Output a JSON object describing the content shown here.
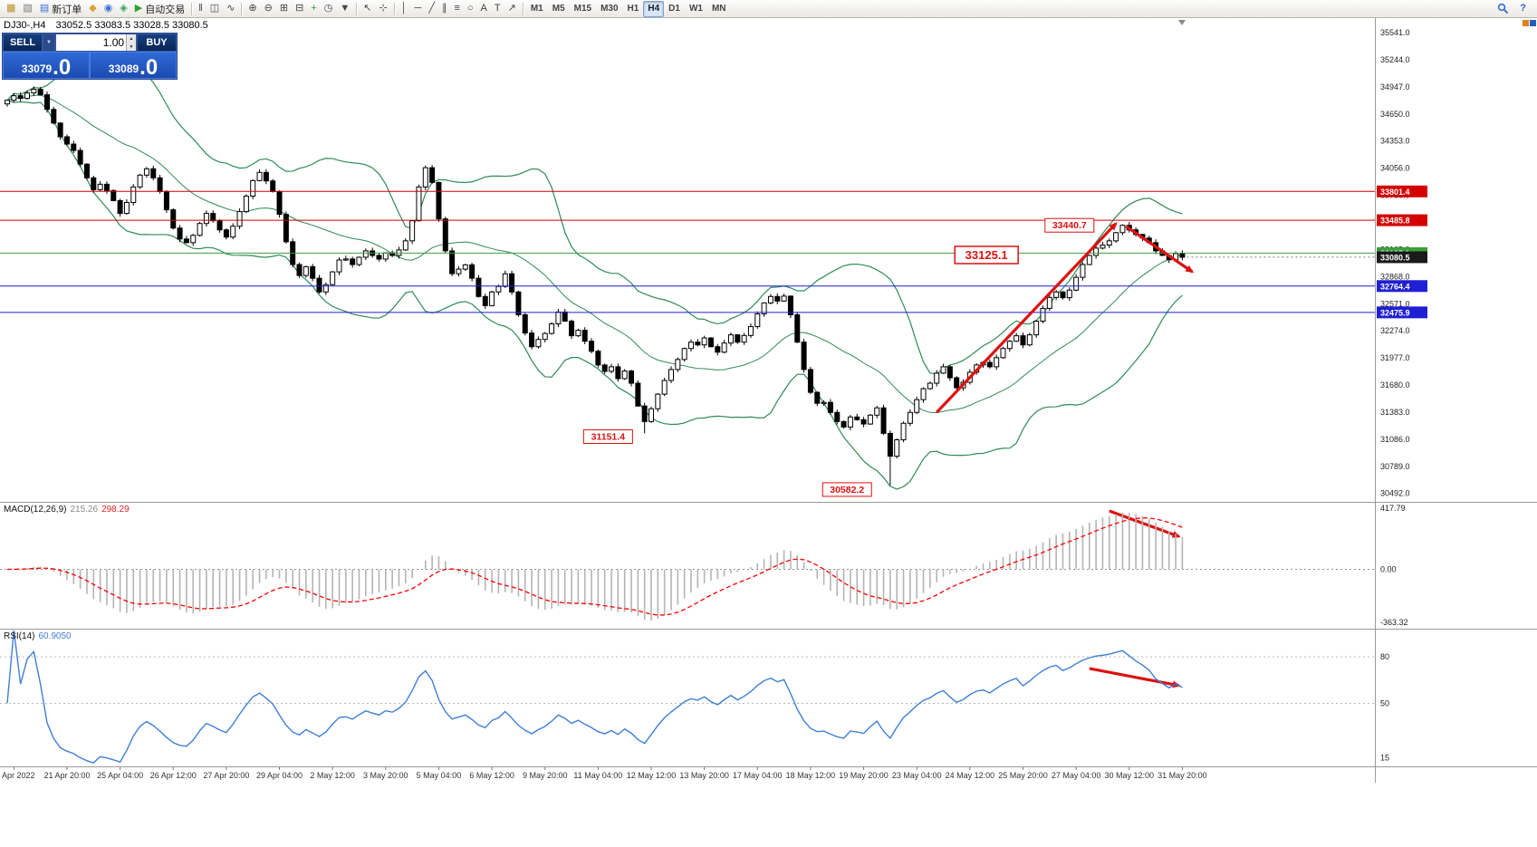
{
  "toolbar": {
    "groups": [
      {
        "items": [
          {
            "name": "new-chart-button",
            "glyph": "▦",
            "color": "#b8912a"
          },
          {
            "name": "profiles-button",
            "glyph": "▧",
            "color": "#7a7a7a"
          },
          {
            "name": "new-order-button",
            "glyph": "▤",
            "color": "#3a6fd8",
            "label": "新订单"
          },
          {
            "name": "metaeditor-button",
            "glyph": "◆",
            "color": "#d8a23a"
          },
          {
            "name": "market-watch-button",
            "glyph": "◉",
            "color": "#3a6fd8"
          },
          {
            "name": "navigator-button",
            "glyph": "◈",
            "color": "#3aa05a"
          },
          {
            "name": "autotrading-button",
            "glyph": "▶",
            "color": "#2da12d",
            "label": "自动交易"
          }
        ]
      },
      {
        "items": [
          {
            "name": "chart-bars-button",
            "glyph": "‖",
            "color": "#444444"
          },
          {
            "name": "chart-candles-button",
            "glyph": "◫",
            "color": "#444444"
          },
          {
            "name": "chart-line-button",
            "glyph": "∿",
            "color": "#444444"
          }
        ]
      },
      {
        "items": [
          {
            "name": "zoom-in-button",
            "glyph": "⊕",
            "color": "#444444"
          },
          {
            "name": "zoom-out-button",
            "glyph": "⊖",
            "color": "#444444"
          },
          {
            "name": "tile-windows-button",
            "glyph": "⊞",
            "color": "#444444"
          },
          {
            "name": "cascade-windows-button",
            "glyph": "⊟",
            "color": "#444444"
          },
          {
            "name": "add-indicator-button",
            "glyph": "+",
            "color": "#2da12d"
          },
          {
            "name": "periods-button",
            "glyph": "◷",
            "color": "#444444"
          },
          {
            "name": "templates-button",
            "glyph": "▼",
            "color": "#444444"
          }
        ]
      },
      {
        "items": [
          {
            "name": "cursor-button",
            "glyph": "↖",
            "color": "#444444"
          },
          {
            "name": "crosshair-button",
            "glyph": "⊹",
            "color": "#444444"
          }
        ]
      },
      {
        "items": [
          {
            "name": "vertical-line-button",
            "glyph": "│",
            "color": "#444444"
          },
          {
            "name": "horizontal-line-button",
            "glyph": "─",
            "color": "#444444"
          },
          {
            "name": "trendline-button",
            "glyph": "╱",
            "color": "#444444"
          },
          {
            "name": "channel-button",
            "glyph": "∥",
            "color": "#444444"
          },
          {
            "name": "fibonacci-button",
            "glyph": "≡",
            "color": "#444444"
          },
          {
            "name": "shapes-button",
            "glyph": "○",
            "color": "#444444"
          },
          {
            "name": "text-button",
            "glyph": "A",
            "color": "#444444"
          },
          {
            "name": "text-label-button",
            "glyph": "T",
            "color": "#444444"
          },
          {
            "name": "arrows-button",
            "glyph": "↗",
            "color": "#444444"
          }
        ]
      }
    ],
    "timeframes": {
      "items": [
        "M1",
        "M5",
        "M15",
        "M30",
        "H1",
        "H4",
        "D1",
        "W1",
        "MN"
      ],
      "active": "H4"
    },
    "right_items": [
      {
        "name": "search-button",
        "glyph": ""
      },
      {
        "name": "help-button",
        "glyph": "?"
      }
    ]
  },
  "chart_header": {
    "symbol_period": "DJ30-,H4",
    "ohlc": "33052.5 33083.5 33028.5 33080.5"
  },
  "trade_panel": {
    "sell_label": "SELL",
    "buy_label": "BUY",
    "volume": "1.00",
    "sell_price_main": "33079",
    "sell_price_big": ".0",
    "buy_price_main": "33089",
    "buy_price_big": ".0"
  },
  "chart_data": {
    "type": "candlestick",
    "symbol": "DJ30-",
    "timeframe": "H4",
    "ylim": [
      30410,
      35700
    ],
    "y_ticks": [
      35541,
      35244,
      34947,
      34650,
      34353,
      34056,
      33759,
      33462,
      33165,
      32868,
      32571,
      32274,
      31977,
      31680,
      31383,
      31086,
      30789,
      30492
    ],
    "first_open": 34760,
    "closes": [
      34800,
      34850,
      34820,
      34880,
      34920,
      34860,
      34700,
      34550,
      34400,
      34320,
      34250,
      34100,
      33950,
      33820,
      33880,
      33811,
      33700,
      33560,
      33680,
      33850,
      33980,
      34049,
      33950,
      33800,
      33600,
      33400,
      33280,
      33240,
      33320,
      33450,
      33560,
      33480,
      33380,
      33301,
      33420,
      33580,
      33750,
      33920,
      34010,
      33916,
      33800,
      33550,
      33250,
      33000,
      32880,
      32977,
      32850,
      32700,
      32780,
      32920,
      33050,
      33061,
      33000,
      33080,
      33150,
      33100,
      33060,
      33128,
      33100,
      33160,
      33260,
      33480,
      33850,
      34061,
      33900,
      33500,
      33150,
      32900,
      32950,
      32997,
      32850,
      32650,
      32550,
      32700,
      32760,
      32899,
      32700,
      32450,
      32250,
      32100,
      32180,
      32245,
      32350,
      32480,
      32380,
      32220,
      32280,
      32160,
      32050,
      31900,
      31830,
      31880,
      31750,
      31834,
      31700,
      31450,
      31280,
      31420,
      31580,
      31730,
      31850,
      31960,
      32080,
      32150,
      32120,
      32196,
      32100,
      32040,
      32140,
      32230,
      32150,
      32223,
      32320,
      32460,
      32580,
      32650,
      32600,
      32654,
      32450,
      32150,
      31850,
      31600,
      31480,
      31490,
      31380,
      31280,
      31220,
      31330,
      31300,
      31253,
      31350,
      31430,
      31150,
      30900,
      31080,
      31261,
      31380,
      31520,
      31640,
      31700,
      31810,
      31880,
      31760,
      31650,
      31710,
      31820,
      31900,
      31928,
      31880,
      31980,
      32080,
      32160,
      32220,
      32120,
      32230,
      32380,
      32520,
      32640,
      32700,
      32637,
      32720,
      32860,
      33000,
      33100,
      33180,
      33213,
      33260,
      33350,
      33430,
      33380,
      33330,
      33290,
      33240,
      33150,
      33100,
      33052,
      33120,
      33080.5
    ],
    "wick_overrides": {
      "4": {
        "high": 34952
      },
      "63": {
        "high": 34085
      },
      "96": {
        "low": 31151.4
      },
      "133": {
        "low": 30582.2
      },
      "168": {
        "high": 33440.7
      }
    },
    "bollinger": {
      "period": 20,
      "deviation": 2
    },
    "hlines": [
      {
        "value": 33801.4,
        "label": "33801.4",
        "color": "#d40000"
      },
      {
        "value": 33485.8,
        "label": "33485.8",
        "color": "#d40000"
      },
      {
        "value": 33125.1,
        "label": "33125.1",
        "color": "#3aa03a"
      },
      {
        "value": 32764.4,
        "label": "32764.4",
        "color": "#1f1fd4"
      },
      {
        "value": 32475.9,
        "label": "32475.9",
        "color": "#1f1fd4"
      }
    ],
    "current_price": {
      "value": 33080.5,
      "label": "33080.5"
    },
    "annotations": {
      "color": "#dd1111",
      "labels": [
        {
          "name": "price-label-33440",
          "text": "33440.7",
          "i": 160,
          "p": 33430,
          "large": false
        },
        {
          "name": "price-label-33125",
          "text": "33125.1",
          "i": 147.5,
          "p": 33105,
          "large": true
        },
        {
          "name": "price-label-31151",
          "text": "31151.4",
          "i": 90.5,
          "p": 31115,
          "large": false
        },
        {
          "name": "price-label-30582",
          "text": "30582.2",
          "i": 126.5,
          "p": 30535,
          "large": false
        }
      ],
      "arrows": [
        {
          "name": "trend-arrow-up",
          "pane": "price",
          "from": {
            "i": 140,
            "v": 31380
          },
          "to": {
            "i": 167,
            "v": 33450
          }
        },
        {
          "name": "trend-arrow-down",
          "pane": "price",
          "from": {
            "i": 168.5,
            "v": 33420
          },
          "to": {
            "i": 178.5,
            "v": 32920
          }
        },
        {
          "name": "macd-arrow-down",
          "pane": "macd",
          "from": {
            "i": 166,
            "v": 400
          },
          "to": {
            "i": 176.5,
            "v": 225
          }
        },
        {
          "name": "rsi-arrow-down",
          "pane": "rsi",
          "from": {
            "i": 163,
            "v": 72.5
          },
          "to": {
            "i": 176.5,
            "v": 61.5
          }
        }
      ]
    },
    "colors": {
      "bull": "#ffffff",
      "bear": "#000000",
      "outline": "#000000",
      "bollinger": "#2e8b57",
      "macd_hist": "#b4b4b4",
      "macd_signal": "#ff0000",
      "rsi_line": "#3f7fd6",
      "current_box": "#1a1a1a"
    }
  },
  "macd": {
    "name": "MACD(12,26,9)",
    "value_main": "215.26",
    "value_signal": "298.29",
    "params": {
      "fast": 12,
      "slow": 26,
      "signal": 9
    },
    "ylim": [
      -400,
      450
    ],
    "axis_labels": [
      {
        "v": 417.79,
        "t": "417.79"
      },
      {
        "v": 0,
        "t": "0.00"
      },
      {
        "v": -363.32,
        "t": "-363.32"
      }
    ]
  },
  "rsi": {
    "name": "RSI(14)",
    "value": "60.9050",
    "period": 14,
    "levels": [
      80,
      50
    ],
    "ylim": [
      10,
      97
    ],
    "axis_labels": [
      {
        "v": 80,
        "t": "80"
      },
      {
        "v": 50,
        "t": "50"
      },
      {
        "v": 15,
        "t": "15"
      }
    ]
  },
  "time_axis": {
    "labels": [
      {
        "text": "Apr 2022",
        "i": 1
      },
      {
        "text": "21 Apr 20:00",
        "i": 9
      },
      {
        "text": "25 Apr 04:00",
        "i": 17
      },
      {
        "text": "26 Apr 12:00",
        "i": 25
      },
      {
        "text": "27 Apr 20:00",
        "i": 33
      },
      {
        "text": "29 Apr 04:00",
        "i": 41
      },
      {
        "text": "2 May 12:00",
        "i": 49
      },
      {
        "text": "3 May 20:00",
        "i": 57
      },
      {
        "text": "5 May 04:00",
        "i": 65
      },
      {
        "text": "6 May 12:00",
        "i": 73
      },
      {
        "text": "9 May 20:00",
        "i": 81
      },
      {
        "text": "11 May 04:00",
        "i": 89
      },
      {
        "text": "12 May 12:00",
        "i": 97
      },
      {
        "text": "13 May 20:00",
        "i": 105
      },
      {
        "text": "17 May 04:00",
        "i": 113
      },
      {
        "text": "18 May 12:00",
        "i": 121
      },
      {
        "text": "19 May 20:00",
        "i": 129
      },
      {
        "text": "23 May 04:00",
        "i": 137
      },
      {
        "text": "24 May 12:00",
        "i": 145
      },
      {
        "text": "25 May 20:00",
        "i": 153
      },
      {
        "text": "27 May 04:00",
        "i": 161
      },
      {
        "text": "30 May 12:00",
        "i": 169
      },
      {
        "text": "31 May 20:00",
        "i": 177
      }
    ]
  }
}
